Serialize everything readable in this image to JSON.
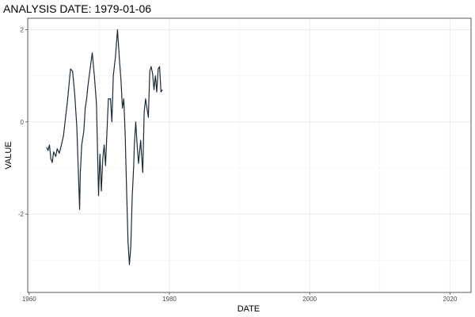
{
  "chart_data": {
    "type": "line",
    "title": "ANALYSIS DATE: 1979-01-06",
    "xlabel": "DATE",
    "ylabel": "VALUE",
    "xlim": [
      1959.8,
      2023.0
    ],
    "ylim": [
      -3.7,
      2.25
    ],
    "x_ticks": [
      1960,
      1980,
      2000,
      2020
    ],
    "x_tick_labels": [
      "1960",
      "1980",
      "2000",
      "2020"
    ],
    "y_ticks": [
      -2,
      0,
      2
    ],
    "y_tick_labels": [
      "-2",
      "0",
      "2"
    ],
    "grid": true,
    "line_color": "#1c2a3a",
    "series": [
      {
        "x": [
          1962.5,
          1962.7,
          1962.9,
          1963.1,
          1963.3,
          1963.5,
          1963.8,
          1964.0,
          1964.3,
          1964.6,
          1964.9,
          1965.2,
          1965.5,
          1965.9,
          1966.2,
          1966.5,
          1966.8,
          1967.0,
          1967.2,
          1967.3,
          1967.5,
          1967.8,
          1968.0,
          1968.2,
          1968.4,
          1968.7,
          1969.0,
          1969.3,
          1969.6,
          1969.9,
          1970.1,
          1970.3,
          1970.5,
          1970.7,
          1970.9,
          1971.1,
          1971.3,
          1971.6,
          1971.8,
          1972.0,
          1972.3,
          1972.6,
          1972.9,
          1973.1,
          1973.3,
          1973.5,
          1973.7,
          1973.9,
          1974.1,
          1974.3,
          1974.5,
          1974.7,
          1974.9,
          1975.0,
          1975.2,
          1975.4,
          1975.6,
          1975.9,
          1976.2,
          1976.4,
          1976.6,
          1976.8,
          1977.0,
          1977.2,
          1977.4,
          1977.6,
          1977.8,
          1978.0,
          1978.2,
          1978.4,
          1978.6,
          1978.8,
          1979.0
        ],
        "y": [
          -0.55,
          -0.62,
          -0.5,
          -0.8,
          -0.88,
          -0.65,
          -0.75,
          -0.58,
          -0.68,
          -0.5,
          -0.3,
          0.1,
          0.5,
          1.15,
          1.1,
          0.6,
          -0.1,
          -1.0,
          -1.9,
          -1.1,
          -0.5,
          -0.2,
          0.3,
          0.5,
          0.8,
          1.15,
          1.5,
          1.0,
          0.4,
          -1.6,
          -0.7,
          -1.5,
          -0.8,
          -0.5,
          -0.95,
          -0.2,
          0.5,
          0.5,
          0.0,
          1.0,
          1.4,
          2.0,
          1.3,
          0.9,
          0.3,
          0.5,
          -0.3,
          -1.5,
          -2.6,
          -3.1,
          -2.7,
          -1.6,
          -1.0,
          -0.5,
          0.0,
          -0.5,
          -0.9,
          -0.4,
          -1.1,
          0.2,
          0.5,
          0.3,
          0.1,
          1.1,
          1.2,
          1.05,
          0.7,
          1.0,
          0.65,
          1.15,
          1.2,
          0.65,
          0.7
        ]
      }
    ]
  }
}
